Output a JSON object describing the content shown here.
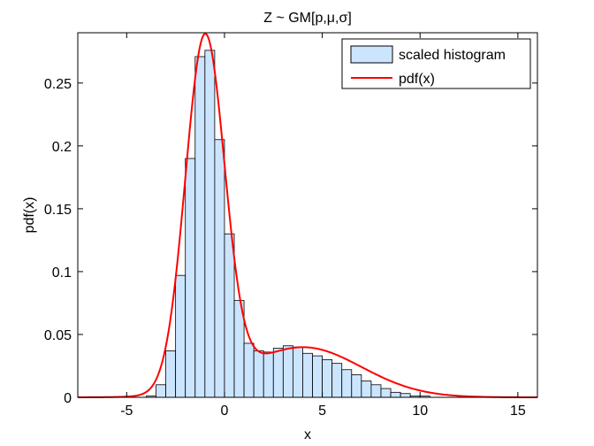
{
  "chart_data": {
    "type": "bar",
    "title": "Z ~ GM[p,μ,σ]",
    "xlabel": "x",
    "ylabel": "pdf(x)",
    "xlim": [
      -7.5,
      16
    ],
    "ylim": [
      0,
      0.29
    ],
    "xticks": [
      -5,
      0,
      5,
      10,
      15
    ],
    "xtick_labels": [
      "-5",
      "0",
      "5",
      "10",
      "15"
    ],
    "yticks": [
      0,
      0.05,
      0.1,
      0.15,
      0.2,
      0.25
    ],
    "ytick_labels": [
      "0",
      "0.05",
      "0.1",
      "0.15",
      "0.2",
      "0.25"
    ],
    "grid": false,
    "legend_position": "top-right",
    "histogram": {
      "name": "scaled histogram",
      "color": "#cce5ff",
      "edge_color": "#000000",
      "bin_width": 0.5,
      "bin_edges_start": -4,
      "values": [
        0.001,
        0.01,
        0.037,
        0.097,
        0.19,
        0.271,
        0.276,
        0.205,
        0.13,
        0.077,
        0.043,
        0.037,
        0.036,
        0.039,
        0.041,
        0.04,
        0.035,
        0.033,
        0.03,
        0.027,
        0.022,
        0.018,
        0.013,
        0.01,
        0.007,
        0.004,
        0.003,
        0.001,
        0.001
      ]
    },
    "pdf_line": {
      "name": "pdf(x)",
      "color": "#ff0000",
      "components": [
        {
          "weight": 0.7,
          "mean": -1,
          "sigma": 1
        },
        {
          "weight": 0.3,
          "mean": 4,
          "sigma": 3
        }
      ]
    }
  }
}
